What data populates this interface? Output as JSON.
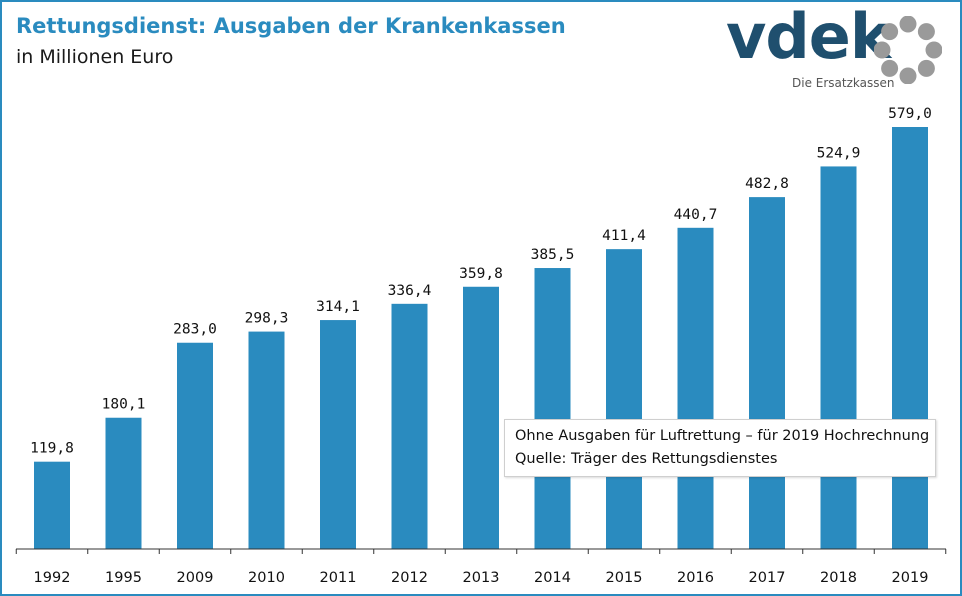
{
  "header": {
    "title": "Rettungsdienst: Ausgaben der Krankenkassen",
    "subtitle": "in Millionen Euro"
  },
  "logo": {
    "wordmark": "vdek",
    "tagline": "Die Ersatzkassen",
    "ring_icon": "vdek-ring-logo-icon"
  },
  "note": {
    "line1": "Ohne Ausgaben für Luftrettung – für 2019 Hochrechnung",
    "line2": "Quelle: Träger des Rettungsdienstes"
  },
  "colors": {
    "bar": "#2a8bbf",
    "title": "#2a8bbf",
    "frame": "#2a8bbf",
    "logo": "#1f4f6e",
    "logo_ring": "#9a9a9a"
  },
  "chart_data": {
    "type": "bar",
    "title": "Rettungsdienst: Ausgaben der Krankenkassen",
    "subtitle": "in Millionen Euro",
    "xlabel": "",
    "ylabel": "",
    "categories": [
      "1992",
      "1995",
      "2009",
      "2010",
      "2011",
      "2012",
      "2013",
      "2014",
      "2015",
      "2016",
      "2017",
      "2018",
      "2019"
    ],
    "values": [
      119.8,
      180.1,
      283.0,
      298.3,
      314.1,
      336.4,
      359.8,
      385.5,
      411.4,
      440.7,
      482.8,
      524.9,
      579.0
    ],
    "value_labels": [
      "119,8",
      "180,1",
      "283,0",
      "298,3",
      "314,1",
      "336,4",
      "359,8",
      "385,5",
      "411,4",
      "440,7",
      "482,8",
      "524,9",
      "579,0"
    ],
    "ylim": [
      0,
      579
    ],
    "grid": false,
    "legend": "none"
  }
}
